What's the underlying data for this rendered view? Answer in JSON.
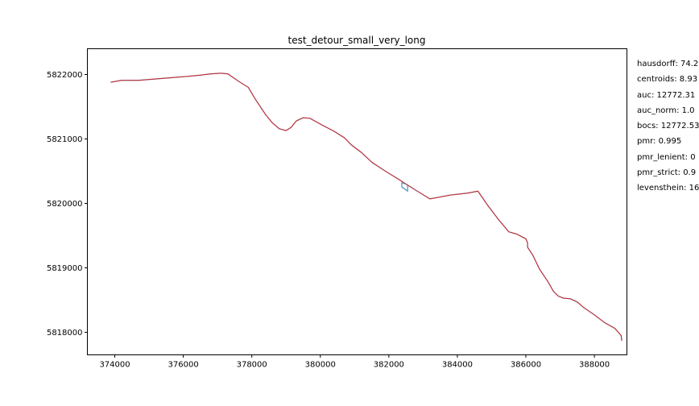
{
  "chart_data": {
    "type": "line",
    "title": "test_detour_small_very_long",
    "xlabel": "",
    "ylabel": "",
    "xlim": [
      373200,
      388950
    ],
    "ylim": [
      5817650,
      5822400
    ],
    "x_ticks": [
      374000,
      376000,
      378000,
      380000,
      382000,
      384000,
      386000,
      388000
    ],
    "y_ticks": [
      5818000,
      5819000,
      5820000,
      5821000,
      5822000
    ],
    "grid": false,
    "series": [
      {
        "color": "#1f77b4",
        "points": [
          [
            373880,
            5821880
          ],
          [
            374200,
            5821910
          ],
          [
            374700,
            5821910
          ],
          [
            375400,
            5821940
          ],
          [
            376100,
            5821970
          ],
          [
            376500,
            5821990
          ],
          [
            376800,
            5822010
          ],
          [
            377100,
            5822020
          ],
          [
            377300,
            5822010
          ],
          [
            377600,
            5821900
          ],
          [
            377900,
            5821800
          ],
          [
            378100,
            5821620
          ],
          [
            378400,
            5821380
          ],
          [
            378600,
            5821250
          ],
          [
            378800,
            5821160
          ],
          [
            379000,
            5821130
          ],
          [
            379150,
            5821180
          ],
          [
            379300,
            5821280
          ],
          [
            379500,
            5821330
          ],
          [
            379700,
            5821320
          ],
          [
            380000,
            5821230
          ],
          [
            380400,
            5821120
          ],
          [
            380700,
            5821020
          ],
          [
            380900,
            5820910
          ],
          [
            381200,
            5820790
          ],
          [
            381500,
            5820640
          ],
          [
            381900,
            5820500
          ],
          [
            382300,
            5820370
          ],
          [
            382500,
            5820300
          ],
          [
            382550,
            5820290
          ],
          [
            382550,
            5820190
          ],
          [
            382450,
            5820230
          ],
          [
            382380,
            5820250
          ],
          [
            382380,
            5820320
          ],
          [
            382500,
            5820300
          ],
          [
            382800,
            5820200
          ],
          [
            383200,
            5820070
          ],
          [
            383500,
            5820100
          ],
          [
            383800,
            5820130
          ],
          [
            384300,
            5820160
          ],
          [
            384600,
            5820190
          ],
          [
            384900,
            5819960
          ],
          [
            385200,
            5819750
          ],
          [
            385500,
            5819560
          ],
          [
            385750,
            5819520
          ],
          [
            386000,
            5819450
          ],
          [
            386050,
            5819390
          ],
          [
            386050,
            5819320
          ],
          [
            386200,
            5819200
          ],
          [
            386400,
            5818980
          ],
          [
            386650,
            5818780
          ],
          [
            386800,
            5818640
          ],
          [
            386950,
            5818560
          ],
          [
            387100,
            5818530
          ],
          [
            387300,
            5818520
          ],
          [
            387500,
            5818470
          ],
          [
            387700,
            5818380
          ],
          [
            388000,
            5818270
          ],
          [
            388300,
            5818150
          ],
          [
            388600,
            5818060
          ],
          [
            388780,
            5817950
          ],
          [
            388800,
            5817870
          ]
        ]
      },
      {
        "color": "#d62728",
        "points": [
          [
            373880,
            5821880
          ],
          [
            374200,
            5821910
          ],
          [
            374700,
            5821910
          ],
          [
            375400,
            5821940
          ],
          [
            376100,
            5821970
          ],
          [
            376500,
            5821990
          ],
          [
            376800,
            5822010
          ],
          [
            377100,
            5822020
          ],
          [
            377300,
            5822010
          ],
          [
            377600,
            5821900
          ],
          [
            377900,
            5821800
          ],
          [
            378100,
            5821620
          ],
          [
            378400,
            5821380
          ],
          [
            378600,
            5821250
          ],
          [
            378800,
            5821160
          ],
          [
            379000,
            5821130
          ],
          [
            379150,
            5821180
          ],
          [
            379300,
            5821280
          ],
          [
            379500,
            5821330
          ],
          [
            379700,
            5821320
          ],
          [
            380000,
            5821230
          ],
          [
            380400,
            5821120
          ],
          [
            380700,
            5821020
          ],
          [
            380900,
            5820910
          ],
          [
            381200,
            5820790
          ],
          [
            381500,
            5820640
          ],
          [
            381900,
            5820500
          ],
          [
            382300,
            5820370
          ],
          [
            382500,
            5820300
          ],
          [
            382800,
            5820200
          ],
          [
            383200,
            5820070
          ],
          [
            383500,
            5820100
          ],
          [
            383800,
            5820130
          ],
          [
            384300,
            5820160
          ],
          [
            384600,
            5820190
          ],
          [
            384900,
            5819960
          ],
          [
            385200,
            5819750
          ],
          [
            385500,
            5819560
          ],
          [
            385750,
            5819520
          ],
          [
            386000,
            5819450
          ],
          [
            386050,
            5819390
          ],
          [
            386050,
            5819320
          ],
          [
            386200,
            5819200
          ],
          [
            386400,
            5818980
          ],
          [
            386650,
            5818780
          ],
          [
            386800,
            5818640
          ],
          [
            386950,
            5818560
          ],
          [
            387100,
            5818530
          ],
          [
            387300,
            5818520
          ],
          [
            387500,
            5818470
          ],
          [
            387700,
            5818380
          ],
          [
            388000,
            5818270
          ],
          [
            388300,
            5818150
          ],
          [
            388600,
            5818060
          ],
          [
            388780,
            5817950
          ],
          [
            388800,
            5817870
          ]
        ]
      }
    ]
  },
  "metrics": [
    "hausdorff: 74.2",
    "centroids: 8.93",
    "auc: 12772.31",
    "auc_norm: 1.0",
    "bocs: 12772.53",
    "pmr: 0.995",
    "pmr_lenient: 0",
    "pmr_strict: 0.9",
    "levensthein: 16"
  ]
}
